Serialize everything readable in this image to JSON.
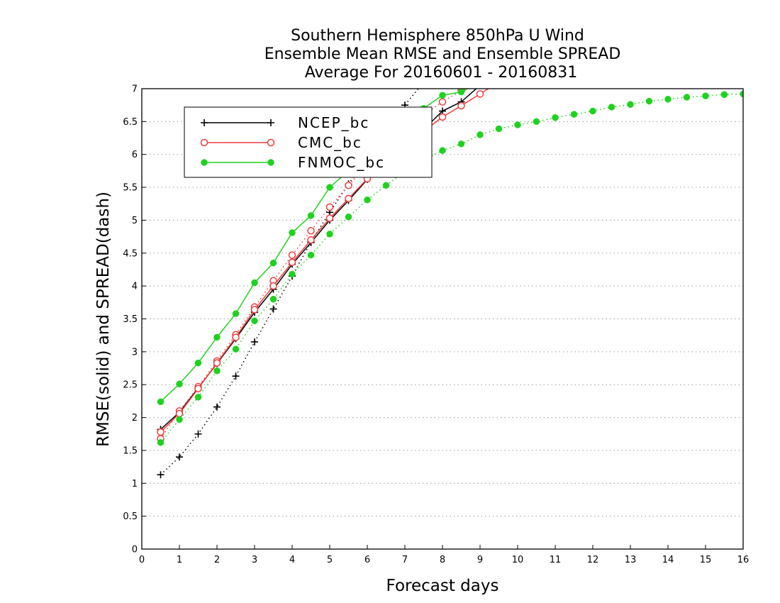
{
  "chart_data": {
    "type": "line",
    "title": [
      "Southern Hemisphere 850hPa U Wind",
      "Ensemble Mean RMSE and Ensemble SPREAD",
      "Average For 20160601 - 20160831"
    ],
    "xlabel": "Forecast days",
    "ylabel": "RMSE(solid) and SPREAD(dash)",
    "xlim": [
      0,
      16
    ],
    "ylim": [
      0,
      7
    ],
    "xticks": [
      "0",
      "1",
      "2",
      "3",
      "4",
      "5",
      "6",
      "7",
      "8",
      "9",
      "10",
      "11",
      "12",
      "13",
      "14",
      "15",
      "16"
    ],
    "yticks": [
      "0",
      "0.5",
      "1",
      "1.5",
      "2",
      "2.5",
      "3",
      "3.5",
      "4",
      "4.5",
      "5",
      "5.5",
      "6",
      "6.5",
      "7"
    ],
    "grid": "horizontal-dotted",
    "legend_position": "top-left",
    "series": [
      {
        "name": "NCEP_bc",
        "color": "#000000",
        "marker": "plus",
        "rmse": {
          "x": [
            0.5,
            1,
            1.5,
            2,
            2.5,
            3,
            3.5,
            4,
            4.5,
            5,
            5.5,
            6,
            6.5,
            7,
            7.5,
            8,
            8.5,
            9,
            9.5
          ],
          "y": [
            1.82,
            2.08,
            2.45,
            2.82,
            3.2,
            3.6,
            3.95,
            4.33,
            4.66,
            5.0,
            5.3,
            5.62,
            5.88,
            6.14,
            6.38,
            6.66,
            6.8,
            7.05,
            7.3
          ]
        },
        "spread": {
          "x": [
            0.5,
            1,
            1.5,
            2,
            2.5,
            3,
            3.5,
            4,
            4.5,
            5,
            5.5,
            6,
            6.5,
            7,
            7.5
          ],
          "y": [
            1.13,
            1.4,
            1.75,
            2.16,
            2.63,
            3.15,
            3.65,
            4.15,
            4.67,
            5.12,
            5.55,
            5.95,
            6.35,
            6.75,
            7.1
          ]
        }
      },
      {
        "name": "CMC_bc",
        "color": "#f03c3c",
        "marker": "open-circle",
        "rmse": {
          "x": [
            0.5,
            1,
            1.5,
            2,
            2.5,
            3,
            3.5,
            4,
            4.5,
            5,
            5.5,
            6,
            6.5,
            7,
            7.5,
            8,
            8.5,
            9,
            9.5
          ],
          "y": [
            1.78,
            2.06,
            2.44,
            2.83,
            3.22,
            3.64,
            4.0,
            4.36,
            4.7,
            5.03,
            5.33,
            5.63,
            5.88,
            6.12,
            6.35,
            6.57,
            6.74,
            6.92,
            7.1
          ]
        },
        "spread": {
          "x": [
            0.5,
            1,
            1.5,
            2,
            2.5,
            3,
            3.5,
            4,
            4.5,
            5,
            5.5,
            6,
            6.5,
            7,
            7.5,
            8,
            8.5,
            9
          ],
          "y": [
            1.68,
            2.1,
            2.47,
            2.86,
            3.26,
            3.68,
            4.08,
            4.47,
            4.84,
            5.2,
            5.53,
            5.85,
            6.15,
            6.43,
            6.6,
            6.8,
            6.97,
            7.15
          ]
        }
      },
      {
        "name": "FNMOC_bc",
        "color": "#1ed21e",
        "marker": "filled-circle",
        "rmse": {
          "x": [
            0.5,
            1,
            1.5,
            2,
            2.5,
            3,
            3.5,
            4,
            4.5,
            5,
            5.5,
            6,
            6.5,
            7,
            7.5,
            8,
            8.5,
            9
          ],
          "y": [
            2.24,
            2.51,
            2.83,
            3.22,
            3.58,
            4.05,
            4.35,
            4.81,
            5.07,
            5.5,
            5.75,
            6.0,
            6.22,
            6.45,
            6.7,
            6.9,
            6.95,
            7.1
          ]
        },
        "spread": {
          "x": [
            0.5,
            1,
            1.5,
            2,
            2.5,
            3,
            3.5,
            4,
            4.5,
            5,
            5.5,
            6,
            6.5,
            7,
            7.5,
            8,
            8.5,
            9,
            9.5,
            10,
            10.5,
            11,
            11.5,
            12,
            12.5,
            13,
            13.5,
            14,
            14.5,
            15,
            15.5,
            16
          ],
          "y": [
            1.62,
            1.97,
            2.31,
            2.71,
            3.04,
            3.47,
            3.8,
            4.18,
            4.47,
            4.79,
            5.05,
            5.31,
            5.53,
            5.74,
            5.92,
            6.06,
            6.16,
            6.3,
            6.39,
            6.45,
            6.5,
            6.56,
            6.61,
            6.66,
            6.72,
            6.76,
            6.81,
            6.84,
            6.87,
            6.89,
            6.91,
            6.92
          ]
        }
      }
    ]
  }
}
